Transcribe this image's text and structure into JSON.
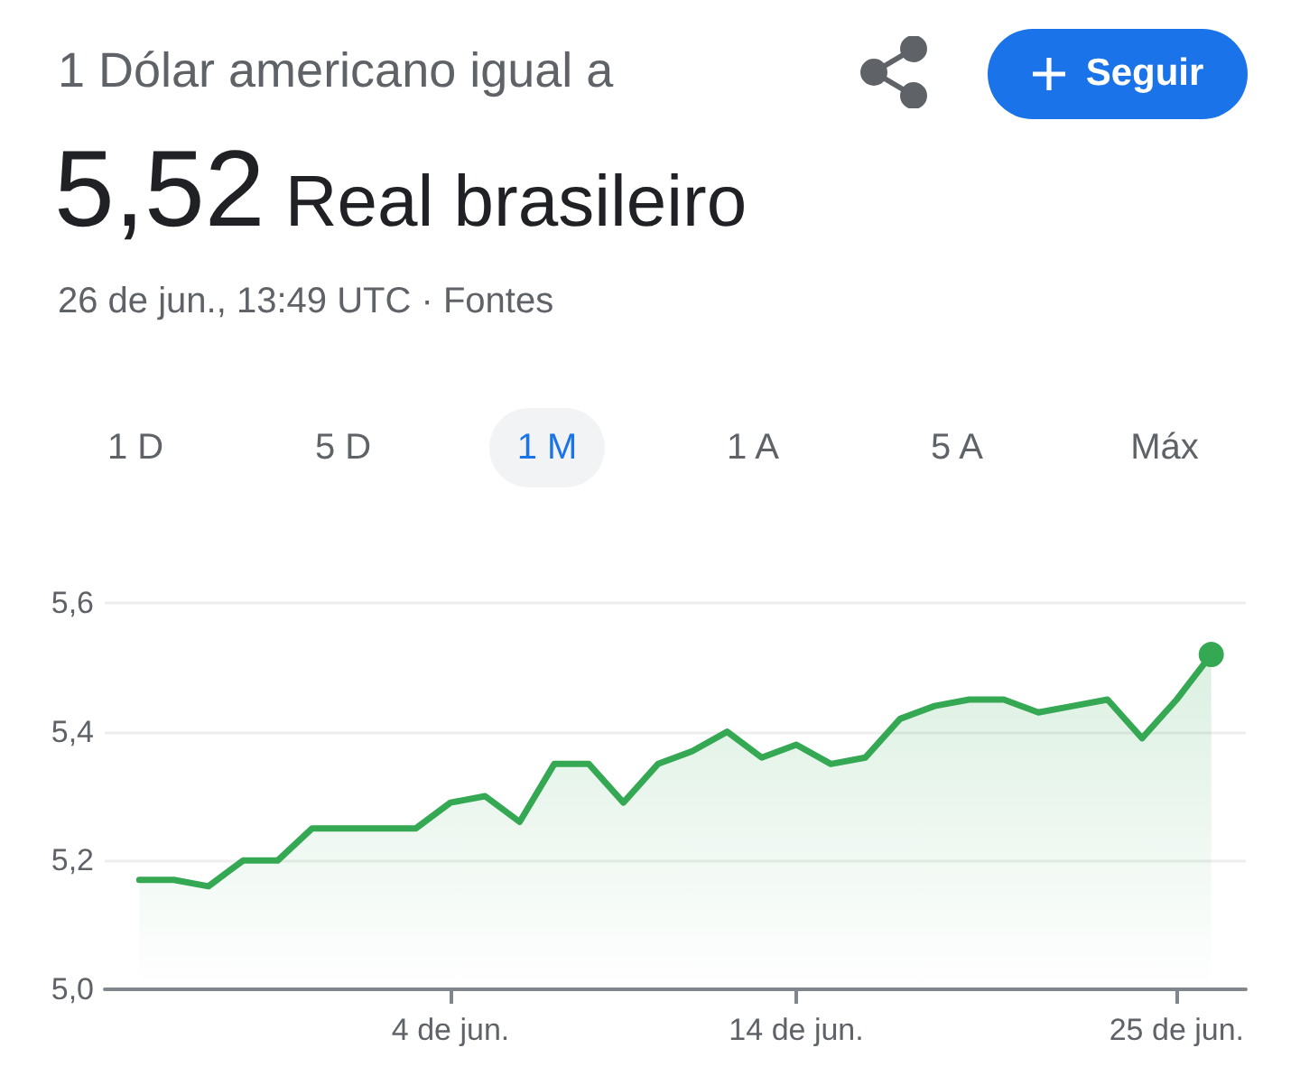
{
  "chart_data": {
    "type": "area",
    "title": "5,52 Real brasileiro",
    "subtitle": "1 Dólar americano igual a",
    "annotations": [
      "26 de jun., 13:49 UTC · Fontes",
      "Seguir",
      "1 D",
      "5 D",
      "1 M",
      "1 A",
      "5 A",
      "Máx"
    ],
    "x": [
      "--05-26",
      "--05-27",
      "--05-28",
      "--05-29",
      "--05-30",
      "--05-31",
      "--06-01",
      "--06-02",
      "--06-03",
      "--06-04",
      "--06-05",
      "--06-06",
      "--06-07",
      "--06-08",
      "--06-09",
      "--06-10",
      "--06-11",
      "--06-12",
      "--06-13",
      "--06-14",
      "--06-15",
      "--06-16",
      "--06-17",
      "--06-18",
      "--06-19",
      "--06-20",
      "--06-21",
      "--06-22",
      "--06-23",
      "--06-24",
      "--06-25",
      "--06-26"
    ],
    "series": [
      {
        "color": "#34a853",
        "values": [
          5.17,
          5.17,
          5.16,
          5.2,
          5.2,
          5.25,
          5.25,
          5.25,
          5.25,
          5.29,
          5.3,
          5.26,
          5.35,
          5.35,
          5.29,
          5.35,
          5.37,
          5.4,
          5.36,
          5.38,
          5.35,
          5.36,
          5.42,
          5.44,
          5.45,
          5.45,
          5.43,
          5.44,
          5.45,
          5.39,
          5.45,
          5.52
        ]
      }
    ],
    "xlim": [
      "--05-25",
      "--06-27"
    ],
    "xticks": [
      {
        "value": "--06-04",
        "label": "4 de jun."
      },
      {
        "value": "--06-14",
        "label": "14 de jun."
      },
      {
        "value": "--06-25",
        "label": "25 de jun."
      }
    ],
    "ylim": [
      5.0,
      5.6
    ],
    "yticks": [
      {
        "value": 5.0,
        "label": "5,0"
      },
      {
        "value": 5.2,
        "label": "5,2"
      },
      {
        "value": 5.4,
        "label": "5,4"
      },
      {
        "value": 5.6,
        "label": "5,6"
      }
    ],
    "grid": "y",
    "marker": "none",
    "line_style": "solid"
  }
}
